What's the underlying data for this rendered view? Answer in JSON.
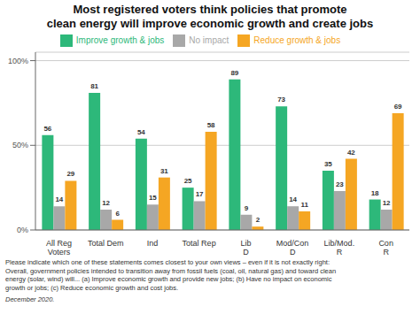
{
  "chart_data": {
    "type": "bar",
    "title": "Most registered voters think policies that promote\nclean energy will improve economic growth and create jobs",
    "categories": [
      "All Reg\nVoters",
      "Total Dem",
      "Ind",
      "Total Rep",
      "Lib\nD",
      "Mod/Con\nD",
      "Lib/Mod.\nR",
      "Con\nR"
    ],
    "series": [
      {
        "name": "Improve growth & jobs",
        "color": "#2db87a",
        "values": [
          56,
          81,
          54,
          25,
          89,
          73,
          35,
          18
        ]
      },
      {
        "name": "No impact",
        "color": "#a8a8a8",
        "values": [
          14,
          12,
          15,
          17,
          9,
          14,
          23,
          12
        ]
      },
      {
        "name": "Reduce growth & jobs",
        "color": "#f5a623",
        "values": [
          29,
          6,
          31,
          58,
          2,
          11,
          42,
          69
        ]
      }
    ],
    "ylim": [
      0,
      105
    ],
    "yticks": [
      {
        "value": 0,
        "label": "0%"
      },
      {
        "value": 50,
        "label": "50%"
      },
      {
        "value": 100,
        "label": "100%"
      }
    ],
    "grid": true,
    "data_labels": true,
    "annotations": [
      "Please indicate which one of these statements comes closest to your own views – even if it is not exactly right:\nOverall, government policies intended to transition away from fossil fuels (coal, oil, natural gas) and toward clean\nenergy (solar, wind) will... (a) Improve economic growth and provide new jobs; (b) Have no impact on economic\ngrowth or jobs; (c) Reduce economic growth and cost jobs.",
      "December 2020."
    ]
  }
}
